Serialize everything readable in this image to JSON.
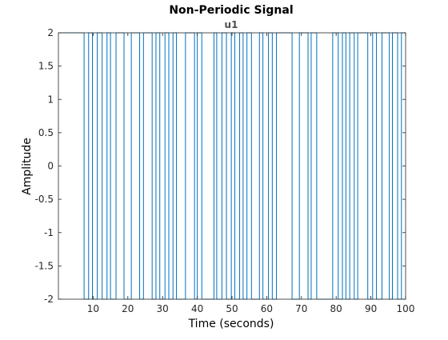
{
  "chart_data": {
    "type": "line",
    "title": "Non-Periodic Signal",
    "subtitle": "u1",
    "xlabel": "Time (seconds)",
    "ylabel": "Amplitude",
    "xlim": [
      0,
      100
    ],
    "ylim": [
      -2,
      2
    ],
    "grid": false,
    "x_ticks": [
      10,
      20,
      30,
      40,
      50,
      60,
      70,
      80,
      90,
      100
    ],
    "x_tick_labels": [
      "10",
      "20",
      "30",
      "40",
      "50",
      "60",
      "70",
      "80",
      "90",
      "100"
    ],
    "y_ticks": [
      -2,
      -1.5,
      -1,
      -0.5,
      0,
      0.5,
      1,
      1.5,
      2
    ],
    "y_tick_labels": [
      "-2",
      "-1.5",
      "-1",
      "-0.5",
      "0",
      "0.5",
      "1",
      "1.5",
      "2"
    ],
    "series": [
      {
        "color": "#0072BD",
        "style": "stairs",
        "switch_times": [
          7.4,
          8.7,
          9.8,
          11.2,
          12.6,
          14,
          15,
          16.6,
          18.9,
          21,
          23.4,
          24.5,
          27,
          28.1,
          29.2,
          30.7,
          31.8,
          33,
          34,
          36.6,
          39.2,
          40,
          41.3,
          44.8,
          45.6,
          47.1,
          48.4,
          49.8,
          50.8,
          52.2,
          53.2,
          54.3,
          55.6,
          57.9,
          58.9,
          60.5,
          61.6,
          62.8,
          67.3,
          69.4,
          71.9,
          72.8,
          74.4,
          79,
          80.6,
          81.8,
          82.8,
          83.9,
          85.2,
          86.2,
          89.1,
          90.5,
          91.6,
          93.2,
          95.3,
          96.2,
          97.7,
          98.8
        ]
      }
    ]
  }
}
